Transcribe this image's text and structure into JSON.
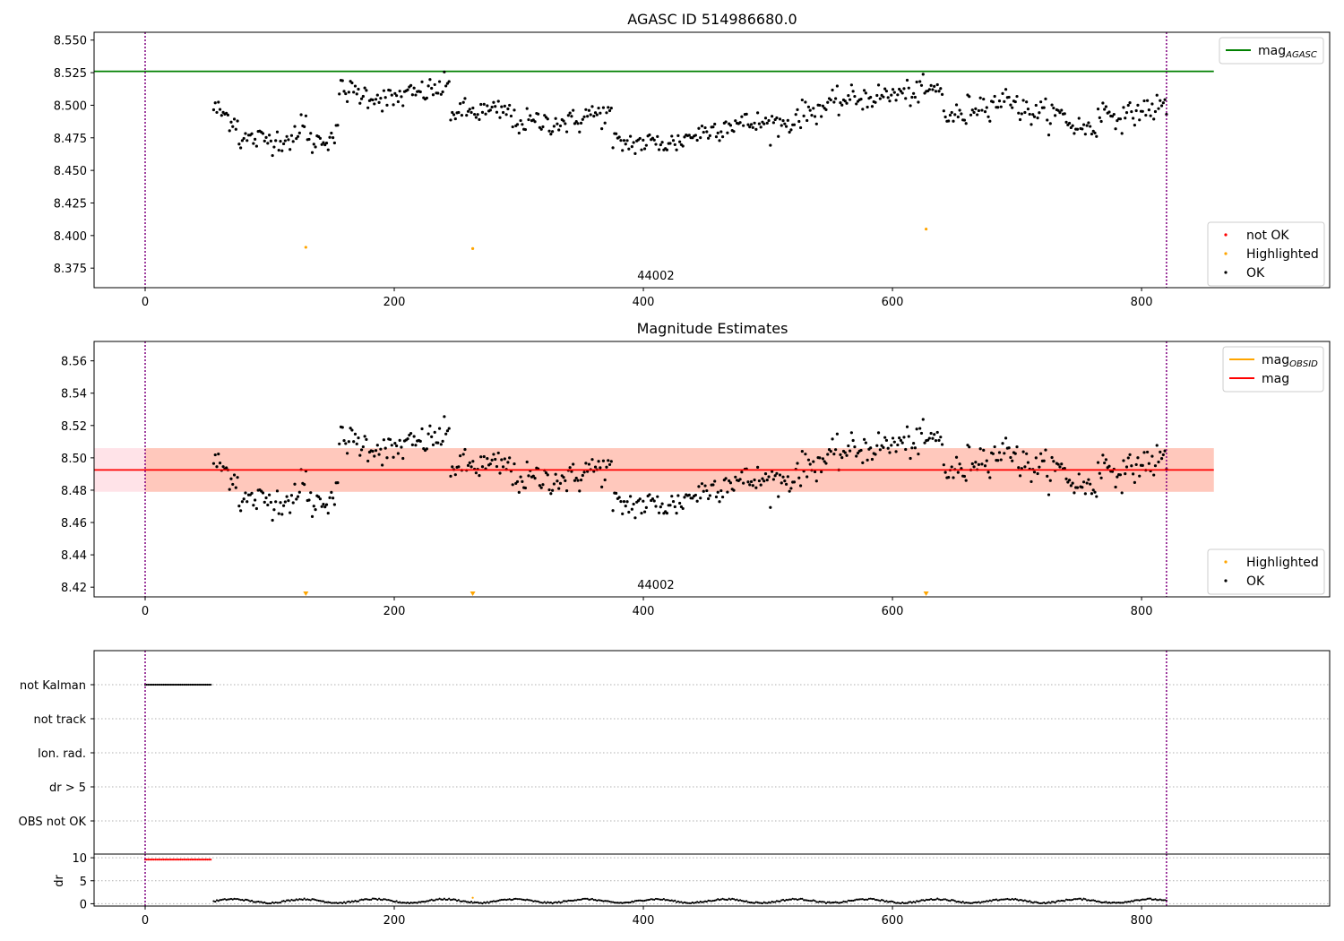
{
  "chart_data": [
    {
      "type": "scatter",
      "title": "AGASC ID 514986680.0",
      "xlim": [
        -41,
        951
      ],
      "ylim": [
        8.36,
        8.556
      ],
      "x_ticks": [
        0,
        200,
        400,
        600,
        800
      ],
      "y_ticks": [
        8.375,
        8.4,
        8.425,
        8.45,
        8.475,
        8.5,
        8.525,
        8.55
      ],
      "y_tick_labels": [
        "8.375",
        "8.400",
        "8.425",
        "8.450",
        "8.475",
        "8.500",
        "8.525",
        "8.550"
      ],
      "obsid_label": "44002",
      "obsid_label_x": 410,
      "vlines": [
        0,
        820
      ],
      "vline_color": "#800080",
      "hline": {
        "y": 8.526,
        "x_range": [
          -41,
          858
        ],
        "color": "#008000"
      },
      "legend_upper": [
        {
          "label": "mag",
          "sub": "AGASC",
          "kind": "line",
          "color": "#008000"
        }
      ],
      "legend_lower": [
        {
          "label": "not OK",
          "kind": "marker",
          "color": "#ff0000"
        },
        {
          "label": "Highlighted",
          "kind": "marker",
          "color": "#ffa500"
        },
        {
          "label": "OK",
          "kind": "marker",
          "color": "#000000"
        }
      ],
      "highlighted_points": [
        [
          129,
          8.391
        ],
        [
          263,
          8.39
        ],
        [
          627,
          8.405
        ]
      ],
      "series_ok": {
        "name": "OK",
        "x_range": [
          55,
          820
        ],
        "n": 600,
        "segments": [
          {
            "x": [
              55,
              75
            ],
            "mean": 8.492,
            "slope": -0.0006
          },
          {
            "x": [
              75,
              125
            ],
            "mean": 8.474,
            "slope": 0.0
          },
          {
            "x": [
              125,
              130
            ],
            "mean": 8.49,
            "slope": 0.0
          },
          {
            "x": [
              130,
              155
            ],
            "mean": 8.474,
            "slope": 0.0003
          },
          {
            "x": [
              155,
              200
            ],
            "mean": 8.508,
            "slope": -0.0002
          },
          {
            "x": [
              200,
              245
            ],
            "mean": 8.51,
            "slope": 0.0002
          },
          {
            "x": [
              245,
              295
            ],
            "mean": 8.495,
            "slope": 0.0
          },
          {
            "x": [
              295,
              350
            ],
            "mean": 8.487,
            "slope": 0.0
          },
          {
            "x": [
              350,
              375
            ],
            "mean": 8.493,
            "slope": 0.0
          },
          {
            "x": [
              375,
              430
            ],
            "mean": 8.471,
            "slope": 0.0
          },
          {
            "x": [
              430,
              470
            ],
            "mean": 8.48,
            "slope": 0.0003
          },
          {
            "x": [
              470,
              520
            ],
            "mean": 8.486,
            "slope": 0.0
          },
          {
            "x": [
              520,
              560
            ],
            "mean": 8.497,
            "slope": 0.0003
          },
          {
            "x": [
              560,
              640
            ],
            "mean": 8.508,
            "slope": 0.0001
          },
          {
            "x": [
              640,
              660
            ],
            "mean": 8.492,
            "slope": 0.0
          },
          {
            "x": [
              660,
              700
            ],
            "mean": 8.502,
            "slope": 0.0002
          },
          {
            "x": [
              700,
              740
            ],
            "mean": 8.494,
            "slope": -0.0001
          },
          {
            "x": [
              740,
              765
            ],
            "mean": 8.483,
            "slope": -0.0002
          },
          {
            "x": [
              765,
              790
            ],
            "mean": 8.493,
            "slope": -0.0003
          },
          {
            "x": [
              790,
              820
            ],
            "mean": 8.497,
            "slope": 0.0002
          }
        ],
        "noise": 0.008
      }
    },
    {
      "type": "scatter",
      "title": "Magnitude Estimates",
      "xlim": [
        -41,
        951
      ],
      "ylim": [
        8.414,
        8.572
      ],
      "x_ticks": [
        0,
        200,
        400,
        600,
        800
      ],
      "y_ticks": [
        8.42,
        8.44,
        8.46,
        8.48,
        8.5,
        8.52,
        8.54,
        8.56
      ],
      "y_tick_labels": [
        "8.42",
        "8.44",
        "8.46",
        "8.48",
        "8.50",
        "8.52",
        "8.54",
        "8.56"
      ],
      "obsid_label": "44002",
      "obsid_label_x": 410,
      "vlines": [
        0,
        820
      ],
      "vline_color": "#800080",
      "mag_line": {
        "y": 8.4925,
        "x_range": [
          -41,
          858
        ],
        "color": "#ff0000"
      },
      "mag_band": {
        "y": [
          8.479,
          8.506
        ],
        "x_range": [
          -41,
          858
        ],
        "color": "#ffc0cb"
      },
      "mag_obsid_line": {
        "y": 8.4925,
        "x_range": [
          -41,
          858
        ],
        "color": "#ffa500"
      },
      "mag_obsid_band": {
        "y": [
          8.479,
          8.506
        ],
        "x_range": [
          0,
          858
        ],
        "color": "#ffa07a"
      },
      "legend_upper": [
        {
          "label": "mag",
          "sub": "OBSID",
          "kind": "line",
          "color": "#ffa500"
        },
        {
          "label": "mag",
          "kind": "line",
          "color": "#ff0000"
        }
      ],
      "legend_lower": [
        {
          "label": "Highlighted",
          "kind": "marker",
          "color": "#ffa500"
        },
        {
          "label": "OK",
          "kind": "marker",
          "color": "#000000"
        }
      ],
      "offscale_markers_x": [
        129,
        263,
        627
      ],
      "series_ok": {
        "name": "OK",
        "same_as_panel": 0
      }
    },
    {
      "type": "scatter",
      "xlim": [
        -41,
        951
      ],
      "categories": [
        "OBS not OK",
        "dr > 5",
        "Ion. rad.",
        "not track",
        "not Kalman"
      ],
      "x_ticks": [
        0,
        200,
        400,
        600,
        800
      ],
      "vlines": [
        0,
        820
      ],
      "vline_color": "#800080",
      "flag_points": {
        "category": "not Kalman",
        "x_range": [
          0,
          54
        ],
        "color": "#000000"
      }
    },
    {
      "type": "scatter",
      "xlim": [
        -41,
        951
      ],
      "ylim": [
        -0.5,
        10.8
      ],
      "ylabel": "dr",
      "x_ticks": [
        0,
        200,
        400,
        600,
        800
      ],
      "y_ticks": [
        0,
        5,
        10
      ],
      "y_tick_labels": [
        "0",
        "5",
        "10"
      ],
      "vlines": [
        0,
        820
      ],
      "vline_color": "#800080",
      "not_ok_points": {
        "x_range": [
          0,
          54
        ],
        "y": 9.6,
        "color": "#ff0000"
      },
      "ok_points": {
        "x_range": [
          55,
          820
        ],
        "mean": 0.6,
        "amplitude": 0.5,
        "color": "#000000"
      },
      "highlighted_points": [
        [
          263,
          1.3
        ]
      ]
    }
  ]
}
